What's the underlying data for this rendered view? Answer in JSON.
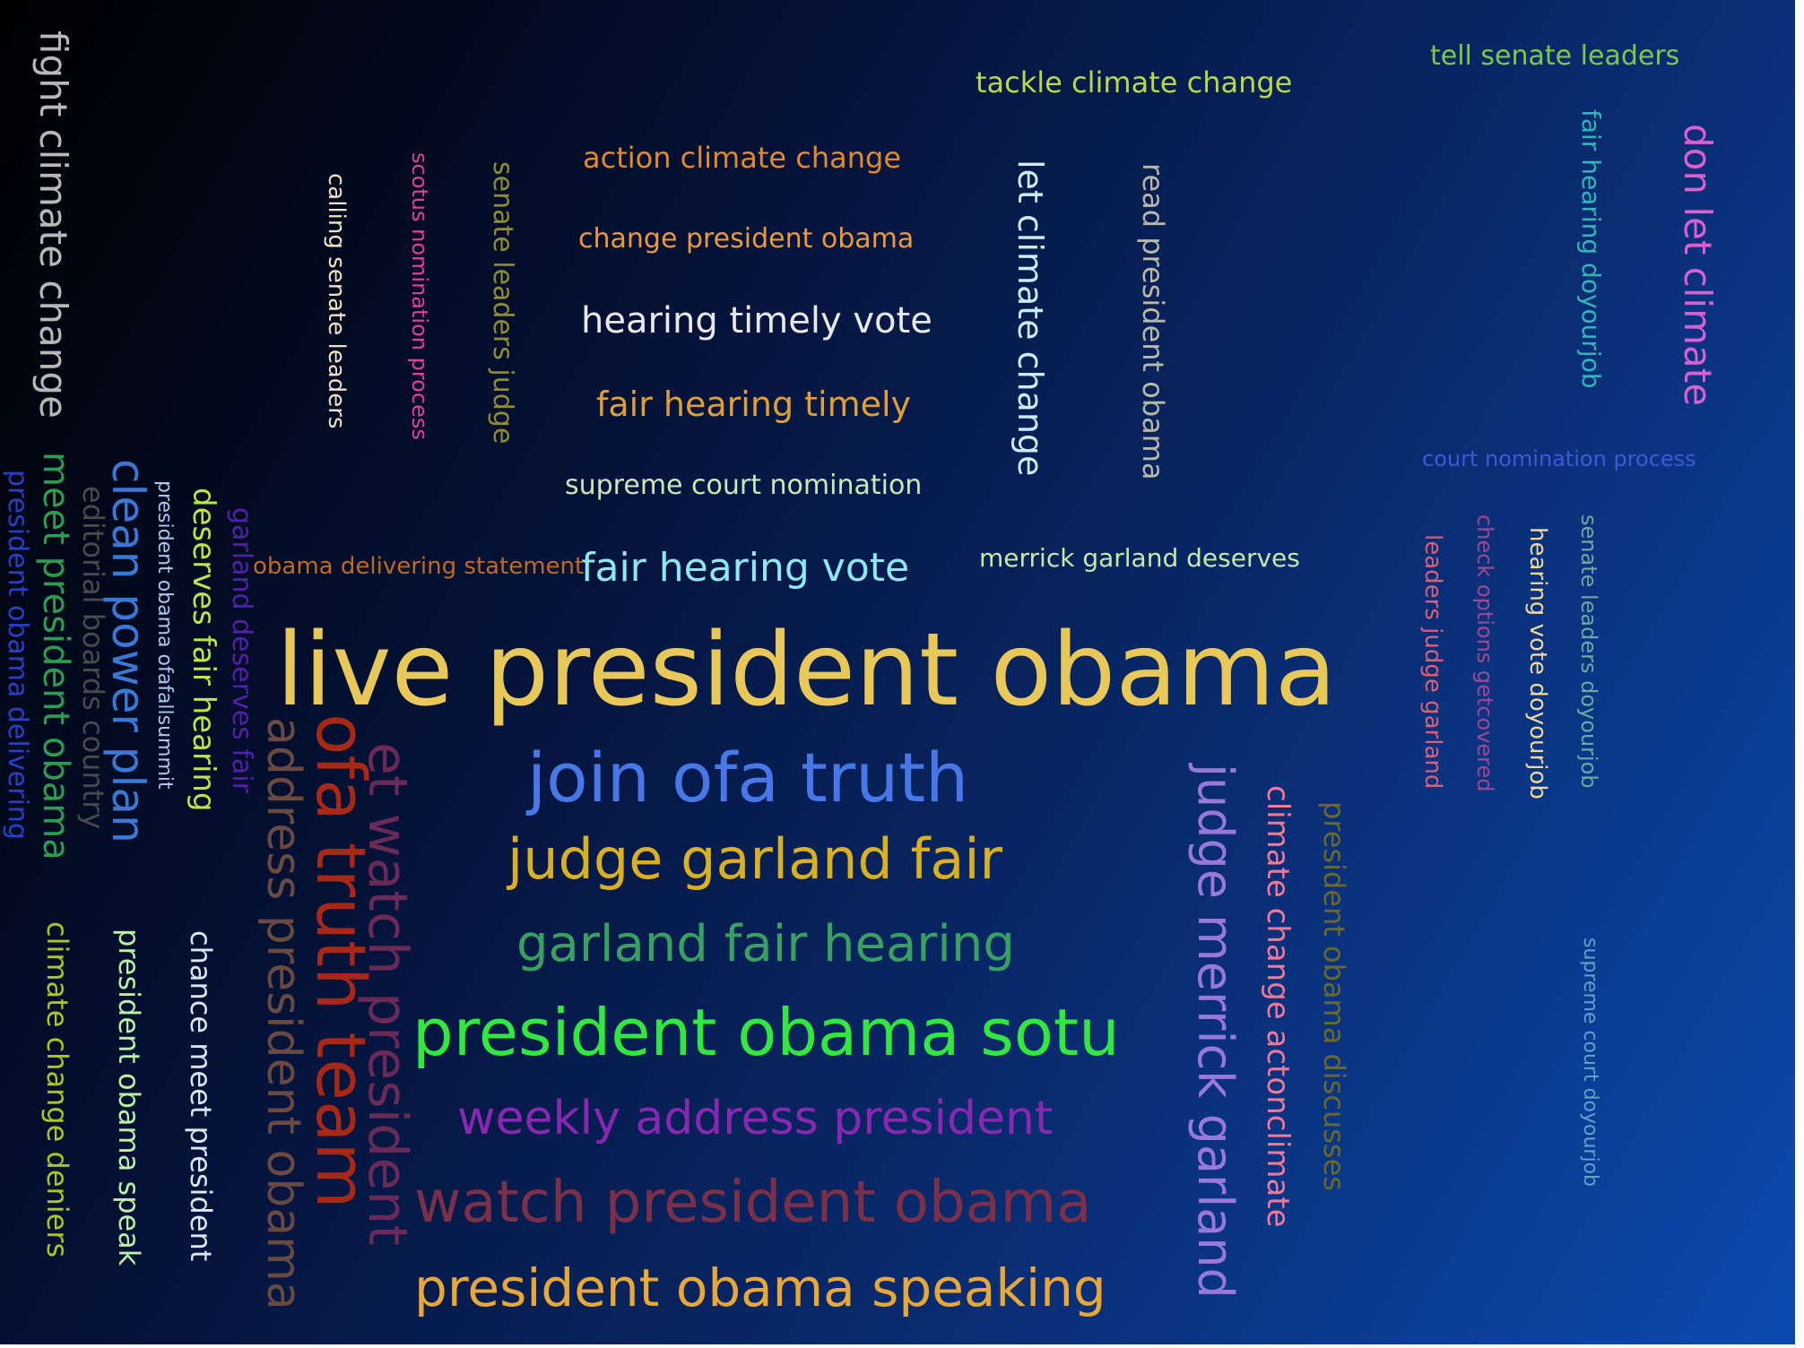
{
  "words": [
    {
      "text": "fight climate change",
      "color": "#b8b8b8",
      "orient": "v"
    },
    {
      "text": "calling senate leaders",
      "color": "#f0e2c4",
      "orient": "v"
    },
    {
      "text": "scotus nomination process",
      "color": "#e0409a",
      "orient": "v"
    },
    {
      "text": "senate leaders judge",
      "color": "#8f8d2e",
      "orient": "v"
    },
    {
      "text": "action climate change",
      "color": "#e08a2c",
      "orient": "h"
    },
    {
      "text": "change president obama",
      "color": "#e89a3c",
      "orient": "h"
    },
    {
      "text": "hearing timely vote",
      "color": "#e8e8e8",
      "orient": "h"
    },
    {
      "text": "fair hearing timely",
      "color": "#e0a030",
      "orient": "h"
    },
    {
      "text": "supreme court nomination",
      "color": "#c8e8b8",
      "orient": "h"
    },
    {
      "text": "fair hearing vote",
      "color": "#8ee8f0",
      "orient": "h"
    },
    {
      "text": "obama delivering statement",
      "color": "#c06a20",
      "orient": "h"
    },
    {
      "text": "tackle climate change",
      "color": "#b8d848",
      "orient": "h"
    },
    {
      "text": "let climate change",
      "color": "#c8ecf8",
      "orient": "v"
    },
    {
      "text": "read president obama",
      "color": "#b8b8a8",
      "orient": "v"
    },
    {
      "text": "merrick garland deserves",
      "color": "#c8e8a8",
      "orient": "h"
    },
    {
      "text": "tell senate leaders",
      "color": "#7ec848",
      "orient": "h"
    },
    {
      "text": "fair hearing doyourjob",
      "color": "#30b8b8",
      "orient": "v"
    },
    {
      "text": "don let climate",
      "color": "#d860d0",
      "orient": "v"
    },
    {
      "text": "court nomination process",
      "color": "#3c5ad8",
      "orient": "h"
    },
    {
      "text": "leaders judge garland",
      "color": "#d86078",
      "orient": "v"
    },
    {
      "text": "check options getcovered",
      "color": "#a04890",
      "orient": "v"
    },
    {
      "text": "hearing vote doyourjob",
      "color": "#f0d898",
      "orient": "v"
    },
    {
      "text": "senate leaders doyourjob",
      "color": "#70a8a0",
      "orient": "v"
    },
    {
      "text": "supreme court doyourjob",
      "color": "#68a0c8",
      "orient": "v"
    },
    {
      "text": "live president obama",
      "color": "#e8c858",
      "orient": "h"
    },
    {
      "text": "join ofa truth",
      "color": "#4878e8",
      "orient": "h"
    },
    {
      "text": "judge garland fair",
      "color": "#d8b020",
      "orient": "h"
    },
    {
      "text": "garland fair hearing",
      "color": "#38a060",
      "orient": "h"
    },
    {
      "text": "president obama sotu",
      "color": "#30e840",
      "orient": "h"
    },
    {
      "text": "weekly address president",
      "color": "#8828b0",
      "orient": "h"
    },
    {
      "text": "watch president obama",
      "color": "#7a3048",
      "orient": "h"
    },
    {
      "text": "president obama speaking",
      "color": "#e8a838",
      "orient": "h"
    },
    {
      "text": "judge merrick garland",
      "color": "#9878d8",
      "orient": "v"
    },
    {
      "text": "climate change actonclimate",
      "color": "#f07898",
      "orient": "v"
    },
    {
      "text": "president obama discusses",
      "color": "#6a6a28",
      "orient": "v"
    },
    {
      "text": "president obama delivering",
      "color": "#2840c8",
      "orient": "v"
    },
    {
      "text": "meet president obama",
      "color": "#2c9c50",
      "orient": "v"
    },
    {
      "text": "editorial boards country",
      "color": "#4a4a4a",
      "orient": "v"
    },
    {
      "text": "clean power plan",
      "color": "#3a78d8",
      "orient": "v"
    },
    {
      "text": "president obama ofafallsummit",
      "color": "#a8c8f0",
      "orient": "v"
    },
    {
      "text": "deserves fair hearing",
      "color": "#b8e848",
      "orient": "v"
    },
    {
      "text": "garland deserves fair",
      "color": "#5020a8",
      "orient": "v"
    },
    {
      "text": "address president obama",
      "color": "#6a4a40",
      "orient": "v"
    },
    {
      "text": "ofa truth team",
      "color": "#a82818",
      "orient": "v"
    },
    {
      "text": "et watch president",
      "color": "#6a2a58",
      "orient": "v"
    },
    {
      "text": "climate change deniers",
      "color": "#a8c820",
      "orient": "v"
    },
    {
      "text": "president obama speak",
      "color": "#b8f0a8",
      "orient": "v"
    },
    {
      "text": "chance meet president",
      "color": "#d8e8f0",
      "orient": "v"
    }
  ]
}
